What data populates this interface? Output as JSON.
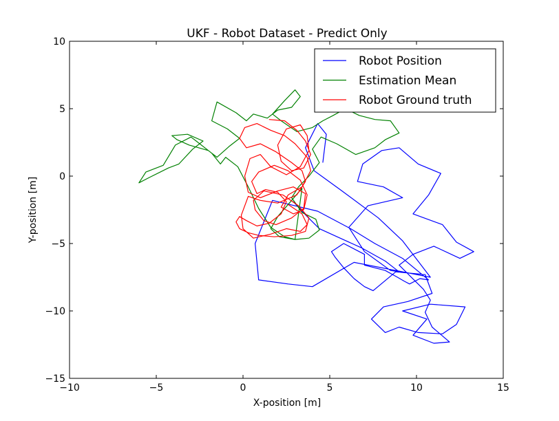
{
  "chart_data": {
    "type": "line",
    "title": "UKF - Robot Dataset - Predict Only",
    "xlabel": "X-position [m]",
    "ylabel": "Y-position [m]",
    "xlim": [
      -10,
      15
    ],
    "ylim": [
      -15,
      10
    ],
    "xticks": [
      -10,
      -5,
      0,
      5,
      10,
      15
    ],
    "yticks": [
      -15,
      -10,
      -5,
      0,
      5,
      10
    ],
    "xtick_labels": [
      "−10",
      "−5",
      "0",
      "5",
      "10",
      "15"
    ],
    "ytick_labels": [
      "−15",
      "−10",
      "−5",
      "0",
      "5",
      "10"
    ],
    "grid": false,
    "legend_position": "top-right",
    "series": [
      {
        "name": "Robot Position",
        "color": "#0000ff",
        "x": [
          2.9,
          3.7,
          4.4,
          5.6,
          6.8,
          8.2,
          9.0,
          8.5,
          7.0,
          6.1,
          7.2,
          9.2,
          8.1,
          6.6,
          6.9,
          8.0,
          9.0,
          10.1,
          11.4,
          10.7,
          9.8,
          11.5,
          12.3,
          13.3,
          12.5,
          11.0,
          9.8,
          9.0,
          10.4,
          10.8,
          10.5,
          10.9,
          11.9,
          11.0,
          9.8,
          10.6,
          9.2,
          10.8,
          12.8,
          12.3,
          11.5,
          10.1,
          9.0,
          8.2,
          7.4,
          8.1,
          9.5,
          10.9,
          10.5,
          8.8,
          7.5,
          7.0,
          6.4,
          5.8,
          5.3,
          5.1,
          5.8,
          7.0,
          7.0,
          8.2,
          8.9,
          9.3,
          9.6,
          10.2,
          10.7,
          9.2,
          7.6,
          6.2,
          4.3,
          1.7,
          1.2,
          0.7,
          0.9,
          2.6,
          4.0,
          6.4,
          10.8,
          9.2,
          7.8,
          5.6,
          4.1,
          3.6,
          4.3,
          4.8,
          4.6
        ],
        "y": [
          -1.9,
          -3.0,
          -3.9,
          -4.6,
          -5.3,
          -6.3,
          -7.1,
          -7.0,
          -5.6,
          -3.8,
          -2.2,
          -1.6,
          -0.8,
          -0.4,
          0.9,
          1.9,
          2.1,
          0.9,
          0.2,
          -1.4,
          -2.8,
          -3.6,
          -4.9,
          -5.6,
          -6.1,
          -5.2,
          -5.8,
          -6.6,
          -8.4,
          -9.2,
          -10.1,
          -11.2,
          -12.3,
          -12.4,
          -11.8,
          -10.6,
          -10.0,
          -9.5,
          -9.7,
          -11.0,
          -11.7,
          -11.6,
          -11.2,
          -11.6,
          -10.6,
          -9.7,
          -9.3,
          -8.7,
          -7.3,
          -7.1,
          -8.5,
          -8.2,
          -7.6,
          -6.8,
          -6.0,
          -5.6,
          -5.0,
          -5.8,
          -6.6,
          -7.0,
          -7.5,
          -7.8,
          -8.0,
          -7.6,
          -7.7,
          -6.1,
          -5.0,
          -3.9,
          -2.6,
          -1.8,
          -3.4,
          -5.0,
          -7.7,
          -8.0,
          -8.2,
          -6.4,
          -7.5,
          -4.8,
          -3.1,
          -1.0,
          0.4,
          2.1,
          3.9,
          3.1,
          1.0
        ],
        "note": ""
      },
      {
        "name": "Estimation Mean",
        "color": "#008000",
        "x": [
          3.0,
          2.4,
          1.6,
          0.9,
          0.3,
          -0.3,
          -1.0,
          -1.3,
          -1.8,
          -2.7,
          -3.0,
          -3.9,
          -4.6,
          -5.6,
          -6.0,
          -5.4,
          -4.3,
          -3.7,
          -2.9,
          -2.3,
          -3.2,
          -4.1,
          -3.8,
          -3.1,
          -2.0,
          -1.5,
          -0.8,
          -0.2,
          -0.9,
          -1.8,
          -1.5,
          -0.4,
          0.2,
          0.6,
          1.4,
          2.0,
          2.8,
          3.3,
          3.0,
          2.4,
          1.7,
          2.2,
          3.1,
          4.0,
          4.6,
          5.2,
          5.9,
          6.7,
          7.6,
          8.5,
          9.0,
          8.2,
          7.6,
          6.5,
          5.4,
          4.5,
          4.0,
          4.4,
          3.8,
          3.2,
          2.8,
          3.4,
          4.2,
          4.4,
          3.8,
          3.0,
          2.1,
          1.6,
          2.0,
          2.8,
          3.4,
          3.0
        ],
        "y": [
          -4.7,
          -4.5,
          -3.8,
          -2.4,
          -0.8,
          0.7,
          1.4,
          0.9,
          1.7,
          2.6,
          2.9,
          2.3,
          0.8,
          0.3,
          -0.5,
          -0.1,
          0.6,
          0.9,
          2.0,
          2.6,
          3.1,
          3.0,
          2.7,
          2.3,
          1.9,
          1.4,
          2.2,
          2.8,
          3.5,
          4.1,
          5.5,
          4.7,
          4.1,
          4.6,
          4.3,
          4.9,
          5.1,
          5.9,
          6.4,
          5.6,
          4.6,
          4.1,
          3.3,
          3.6,
          4.1,
          4.5,
          5.0,
          4.5,
          4.2,
          4.1,
          3.2,
          2.7,
          2.1,
          1.6,
          2.4,
          2.9,
          2.0,
          1.0,
          0.0,
          -0.8,
          -1.6,
          -2.7,
          -3.2,
          -4.0,
          -4.6,
          -4.7,
          -4.5,
          -3.9,
          -3.0,
          -1.8,
          -0.9,
          -4.7
        ],
        "note": ""
      },
      {
        "name": "Robot Ground truth",
        "color": "#ff0000",
        "x": [
          1.5,
          2.4,
          3.1,
          3.6,
          3.9,
          3.5,
          2.8,
          2.2,
          2.0,
          2.5,
          3.3,
          3.7,
          3.8,
          3.3,
          2.5,
          1.6,
          1.0,
          0.4,
          0.1,
          0.3,
          1.0,
          2.0,
          2.9,
          3.6,
          3.5,
          2.8,
          1.9,
          1.2,
          0.7,
          0.6,
          1.2,
          2.3,
          3.2,
          3.8,
          3.6,
          2.8,
          1.8,
          0.9,
          0.3,
          -0.2,
          -0.4,
          -0.2,
          0.2,
          0.8,
          1.5,
          2.2,
          2.5,
          2.0,
          1.3,
          0.8,
          0.5,
          0.9,
          1.8,
          2.6,
          3.3,
          3.7,
          3.5,
          2.9,
          2.2,
          2.6,
          3.4,
          3.9,
          3.7,
          3.0,
          2.4,
          1.6,
          0.8,
          0.1,
          -0.2,
          0.2,
          1.0,
          1.9,
          2.8,
          3.4,
          3.6,
          3.1,
          2.0,
          1.0,
          0.3,
          -0.1,
          0.0,
          0.6,
          1.6,
          2.5,
          3.3,
          3.7,
          3.4,
          2.6
        ],
        "y": [
          4.2,
          4.1,
          3.4,
          2.6,
          1.6,
          0.6,
          0.4,
          1.1,
          2.3,
          3.5,
          3.8,
          3.0,
          1.9,
          0.7,
          0.1,
          0.7,
          1.6,
          1.3,
          0.0,
          -1.2,
          -1.6,
          -1.1,
          -0.8,
          -1.3,
          -2.4,
          -3.1,
          -3.6,
          -3.3,
          -2.5,
          -1.8,
          -1.1,
          -1.4,
          -2.2,
          -3.1,
          -4.1,
          -4.4,
          -4.5,
          -4.4,
          -4.2,
          -3.9,
          -3.4,
          -3.0,
          -3.3,
          -3.7,
          -3.5,
          -2.8,
          -1.9,
          -1.2,
          -1.0,
          -1.3,
          -0.4,
          0.3,
          0.8,
          0.4,
          -0.3,
          -1.4,
          -2.5,
          -2.8,
          -2.3,
          -1.4,
          -0.8,
          0.4,
          1.4,
          2.4,
          3.0,
          3.4,
          3.9,
          3.6,
          2.8,
          2.1,
          2.4,
          1.8,
          1.0,
          0.4,
          -0.4,
          -1.4,
          -2.0,
          -1.8,
          -1.5,
          -2.9,
          -3.9,
          -4.6,
          -4.3,
          -3.9,
          -4.1,
          -3.6,
          -2.8,
          -2.1
        ],
        "note": ""
      }
    ]
  }
}
